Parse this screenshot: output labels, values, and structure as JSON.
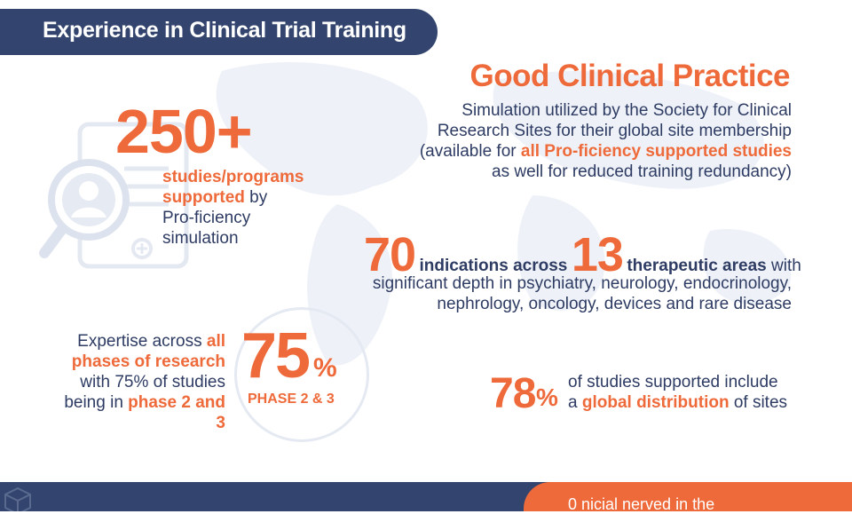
{
  "header": {
    "title": "Experience in Clinical Trial Training"
  },
  "gcp": {
    "title": "Good Clinical Practice",
    "desc_line1": "Simulation utilized by the Society for Clinical",
    "desc_line2": "Research Sites for their global site membership",
    "desc_line3_a": "(available for ",
    "desc_line3_b": "all Pro-ficiency supported studies",
    "desc_line4": "as well for reduced training redundancy)"
  },
  "studies": {
    "number": "250+",
    "label_a": "studies/programs",
    "label_b": "supported",
    "label_c": " by",
    "label_d": "Pro-ficiency",
    "label_e": "simulation"
  },
  "indications": {
    "num1": "70",
    "text1": "indications across",
    "num2": "13",
    "text2": "therapeutic areas",
    "text3": " with",
    "desc_line1": "significant depth in psychiatry, neurology, endocrinology,",
    "desc_line2": "nephrology, oncology, devices and rare disease"
  },
  "phases": {
    "desc_a": "Expertise across ",
    "desc_b": "all",
    "desc_c": "phases of research",
    "desc_d": "with 75% of studies",
    "desc_e": "being in ",
    "desc_f": "phase 2 and 3",
    "number": "75",
    "percent": "%",
    "label": "PHASE 2 & 3"
  },
  "global": {
    "number": "78",
    "percent": "%",
    "desc_a": "of studies supported include",
    "desc_b": "a ",
    "desc_c": "global distribution",
    "desc_d": " of sites"
  },
  "footer": {
    "partial_text": "0         nicial nerved in the"
  },
  "colors": {
    "accent": "#ee6a3a",
    "navy": "#33456e",
    "text": "#2e3c64"
  },
  "icons": [
    "magnifier-person-icon",
    "document-icon",
    "cube-icon"
  ]
}
